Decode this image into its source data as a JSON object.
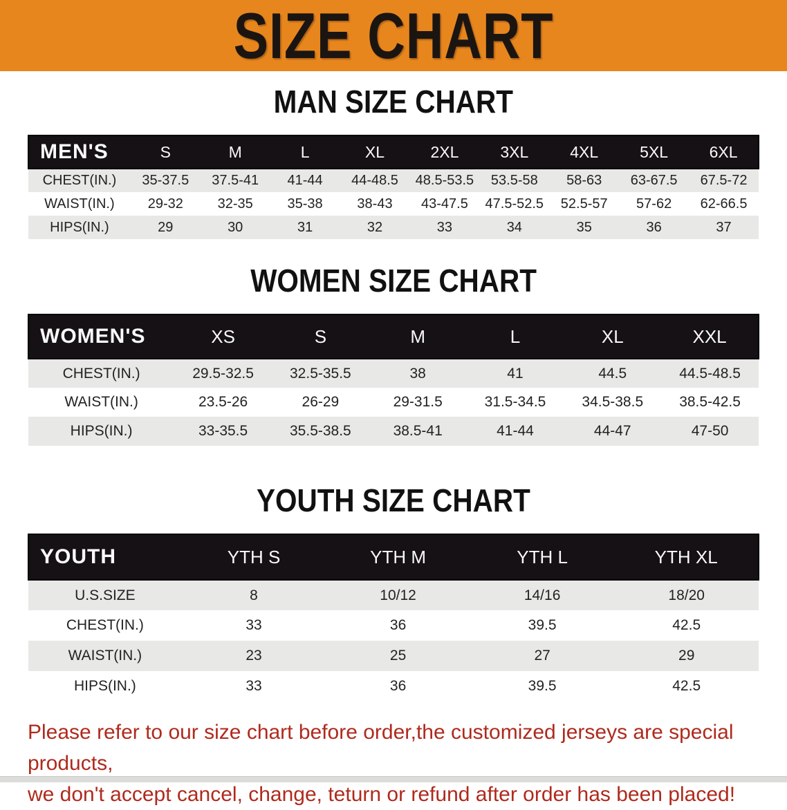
{
  "banner": {
    "title": "SIZE CHART"
  },
  "colors": {
    "banner_bg": "#E8861E",
    "banner_text": "#1B1512",
    "bar_bg": "#151114",
    "bar_text": "#FAFAFA",
    "row_stripe": "#E8E8E7",
    "body_text": "#222222",
    "heading_text": "#111111",
    "disclaimer_color": "#AF2A1D"
  },
  "sections": [
    {
      "heading": "MAN SIZE CHART",
      "table": {
        "label": "MEN'S",
        "columns": [
          "S",
          "M",
          "L",
          "XL",
          "2XL",
          "3XL",
          "4XL",
          "5XL",
          "6XL"
        ],
        "rows": [
          {
            "label": "CHEST(IN.)",
            "values": [
              "35-37.5",
              "37.5-41",
              "41-44",
              "44-48.5",
              "48.5-53.5",
              "53.5-58",
              "58-63",
              "63-67.5",
              "67.5-72"
            ]
          },
          {
            "label": "WAIST(IN.)",
            "values": [
              "29-32",
              "32-35",
              "35-38",
              "38-43",
              "43-47.5",
              "47.5-52.5",
              "52.5-57",
              "57-62",
              "62-66.5"
            ]
          },
          {
            "label": "HIPS(IN.)",
            "values": [
              "29",
              "30",
              "31",
              "32",
              "33",
              "34",
              "35",
              "36",
              "37"
            ]
          }
        ]
      }
    },
    {
      "heading": "WOMEN SIZE CHART",
      "table": {
        "label": "WOMEN'S",
        "columns": [
          "XS",
          "S",
          "M",
          "L",
          "XL",
          "XXL"
        ],
        "rows": [
          {
            "label": "CHEST(IN.)",
            "values": [
              "29.5-32.5",
              "32.5-35.5",
              "38",
              "41",
              "44.5",
              "44.5-48.5"
            ]
          },
          {
            "label": "WAIST(IN.)",
            "values": [
              "23.5-26",
              "26-29",
              "29-31.5",
              "31.5-34.5",
              "34.5-38.5",
              "38.5-42.5"
            ]
          },
          {
            "label": "HIPS(IN.)",
            "values": [
              "33-35.5",
              "35.5-38.5",
              "38.5-41",
              "41-44",
              "44-47",
              "47-50"
            ]
          }
        ]
      }
    },
    {
      "heading": "YOUTH SIZE CHART",
      "table": {
        "label": "YOUTH",
        "columns": [
          "YTH S",
          "YTH M",
          "YTH L",
          "YTH XL"
        ],
        "rows": [
          {
            "label": "U.S.SIZE",
            "values": [
              "8",
              "10/12",
              "14/16",
              "18/20"
            ]
          },
          {
            "label": "CHEST(IN.)",
            "values": [
              "33",
              "36",
              "39.5",
              "42.5"
            ]
          },
          {
            "label": "WAIST(IN.)",
            "values": [
              "23",
              "25",
              "27",
              "29"
            ]
          },
          {
            "label": "HIPS(IN.)",
            "values": [
              "33",
              "36",
              "39.5",
              "42.5"
            ]
          }
        ]
      }
    }
  ],
  "disclaimer": {
    "lines": [
      "Please refer to our size chart before order,the customized jerseys are special products,",
      "we don't accept cancel, change, teturn or refund after order has been placed!"
    ]
  }
}
